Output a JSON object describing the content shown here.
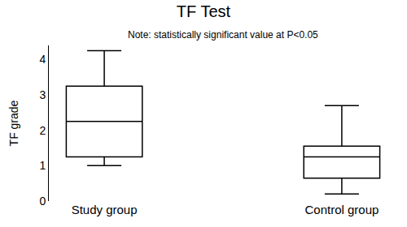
{
  "chart_data": {
    "type": "box",
    "title": "TF Test",
    "subtitle": "Note: statistically significant value at P<0.05",
    "y_label": "TF grade",
    "categories": [
      "Study group",
      "Control group"
    ],
    "min": [
      1.0,
      0.2
    ],
    "q1": [
      1.25,
      0.65
    ],
    "median": [
      2.25,
      1.25
    ],
    "q3": [
      3.25,
      1.55
    ],
    "max": [
      4.25,
      2.7
    ],
    "color": "#000000",
    "ylim": [
      0,
      4.4
    ],
    "yticks": [
      0,
      1,
      2,
      3,
      4
    ],
    "grid": false
  }
}
